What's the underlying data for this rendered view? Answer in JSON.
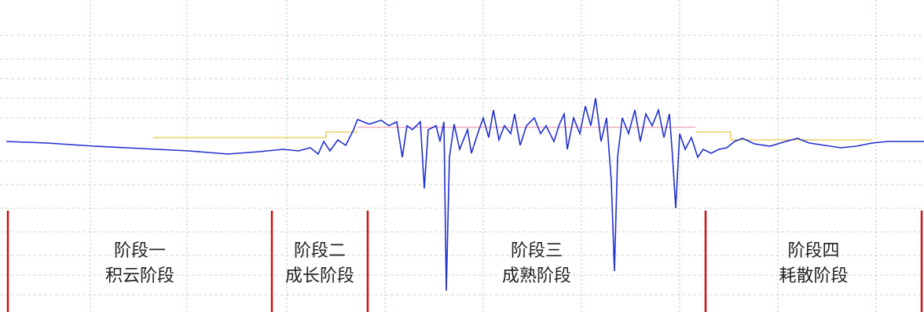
{
  "chart_data": {
    "type": "line",
    "xlim": [
      0,
      1176
    ],
    "ylim": [
      397,
      0
    ],
    "xticks": [
      115,
      238,
      365,
      490,
      615,
      740,
      865,
      990,
      1115
    ],
    "yticks": [
      45,
      75,
      100,
      125,
      150,
      205,
      235,
      265,
      295,
      325,
      350,
      375
    ],
    "grid": true,
    "series": [
      {
        "color": "#1f2fd0",
        "x": [
          8,
          60,
          120,
          180,
          240,
          290,
          330,
          360,
          380,
          395,
          405,
          412,
          420,
          430,
          440,
          450,
          455,
          470,
          485,
          495,
          505,
          512,
          518,
          525,
          535,
          540,
          545,
          555,
          560,
          565,
          568,
          572,
          578,
          585,
          595,
          600,
          608,
          615,
          622,
          628,
          635,
          642,
          650,
          655,
          662,
          670,
          680,
          688,
          695,
          705,
          712,
          718,
          722,
          730,
          738,
          745,
          752,
          758,
          765,
          772,
          778,
          782,
          786,
          792,
          800,
          808,
          815,
          822,
          830,
          838,
          845,
          852,
          856,
          860,
          865,
          872,
          880,
          888,
          895,
          905,
          915,
          925,
          935,
          945,
          960,
          980,
          1000,
          1015,
          1030,
          1050,
          1070,
          1090,
          1110,
          1130,
          1176
        ],
        "values": [
          180,
          182,
          186,
          189,
          192,
          196,
          193,
          190,
          192,
          188,
          196,
          180,
          192,
          178,
          185,
          165,
          152,
          158,
          153,
          160,
          155,
          200,
          160,
          165,
          155,
          240,
          165,
          160,
          180,
          155,
          370,
          200,
          158,
          190,
          165,
          195,
          170,
          150,
          175,
          140,
          178,
          160,
          170,
          145,
          185,
          160,
          150,
          170,
          160,
          180,
          158,
          145,
          190,
          150,
          170,
          135,
          160,
          125,
          180,
          150,
          230,
          345,
          200,
          150,
          170,
          140,
          180,
          145,
          160,
          140,
          175,
          145,
          200,
          265,
          170,
          190,
          175,
          200,
          190,
          195,
          190,
          188,
          180,
          176,
          183,
          186,
          180,
          176,
          182,
          185,
          188,
          186,
          182,
          180,
          180
        ]
      },
      {
        "color": "#e8c84a",
        "x": [
          195,
          415,
          415,
          455,
          455,
          885,
          885,
          930,
          930,
          1110
        ],
        "values": [
          175,
          175,
          168,
          168,
          null,
          null,
          168,
          168,
          178,
          178
        ]
      },
      {
        "color": "#f0a0b0",
        "x": [
          455,
          885
        ],
        "values": [
          162,
          162
        ]
      }
    ],
    "stage_boundaries": [
      10,
      346,
      468,
      898,
      1173
    ],
    "annotations": [
      [
        "阶段一",
        "积云阶段"
      ],
      [
        "阶段二",
        "成长阶段"
      ],
      [
        "阶段三",
        "成熟阶段"
      ],
      [
        "阶段四",
        "耗散阶段"
      ]
    ]
  }
}
